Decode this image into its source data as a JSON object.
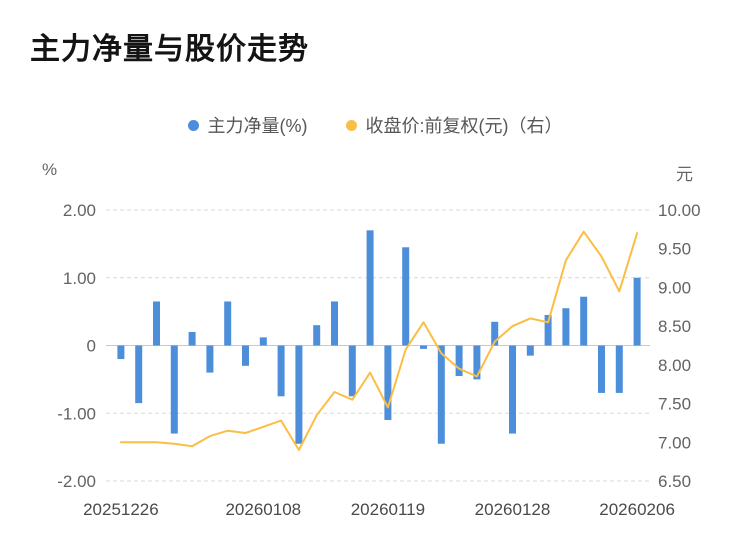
{
  "title": "主力净量与股价走势",
  "legend": {
    "items": [
      {
        "label": "主力净量(%)",
        "color": "#4D8EDB"
      },
      {
        "label": "收盘价:前复权(元)（右）",
        "color": "#FBBE45"
      }
    ]
  },
  "axis_units": {
    "left": "%",
    "right": "元"
  },
  "chart_data": {
    "type": "bar+line",
    "title": "主力净量与股价走势",
    "n_points": 30,
    "legend_position": "top-center",
    "grid": {
      "horizontal_dashed": true,
      "vertical": false
    },
    "x_axis": {
      "tick_labels": [
        "20251226",
        "20260108",
        "20260119",
        "20260128",
        "20260206"
      ],
      "tick_indices": [
        0,
        8,
        15,
        22,
        29
      ]
    },
    "left_axis": {
      "unit": "%",
      "min": -2,
      "max": 2,
      "ticks": [
        {
          "v": 2,
          "label": "2.00"
        },
        {
          "v": 1,
          "label": "1.00"
        },
        {
          "v": 0,
          "label": "0"
        },
        {
          "v": -1,
          "label": "-1.00"
        },
        {
          "v": -2,
          "label": "-2.00"
        }
      ]
    },
    "right_axis": {
      "unit": "元",
      "min": 6.5,
      "max": 10,
      "ticks": [
        {
          "v": 10,
          "label": "10.00"
        },
        {
          "v": 9.5,
          "label": "9.50"
        },
        {
          "v": 9,
          "label": "9.00"
        },
        {
          "v": 8.5,
          "label": "8.50"
        },
        {
          "v": 8,
          "label": "8.00"
        },
        {
          "v": 7.5,
          "label": "7.50"
        },
        {
          "v": 7,
          "label": "7.00"
        },
        {
          "v": 6.5,
          "label": "6.50"
        }
      ]
    },
    "series": [
      {
        "name": "主力净量(%)",
        "type": "bar",
        "axis": "left",
        "color": "#4D8EDB",
        "values": [
          -0.2,
          -0.85,
          0.65,
          -1.3,
          0.2,
          -0.4,
          0.65,
          -0.3,
          0.12,
          -0.75,
          -1.45,
          0.3,
          0.65,
          -0.75,
          1.7,
          -1.1,
          1.45,
          -0.05,
          -1.45,
          -0.45,
          -0.5,
          0.35,
          -1.3,
          -0.15,
          0.45,
          0.55,
          0.72,
          -0.7,
          -0.7,
          1.0
        ]
      },
      {
        "name": "收盘价:前复权(元)（右）",
        "type": "line",
        "axis": "right",
        "color": "#FBBE45",
        "values": [
          7.0,
          7.0,
          7.0,
          6.98,
          6.95,
          7.08,
          7.15,
          7.12,
          7.2,
          7.28,
          6.9,
          7.35,
          7.65,
          7.55,
          7.9,
          7.45,
          8.2,
          8.55,
          8.15,
          7.95,
          7.85,
          8.3,
          8.5,
          8.6,
          8.55,
          9.35,
          9.72,
          9.4,
          8.95,
          9.7
        ]
      }
    ]
  }
}
